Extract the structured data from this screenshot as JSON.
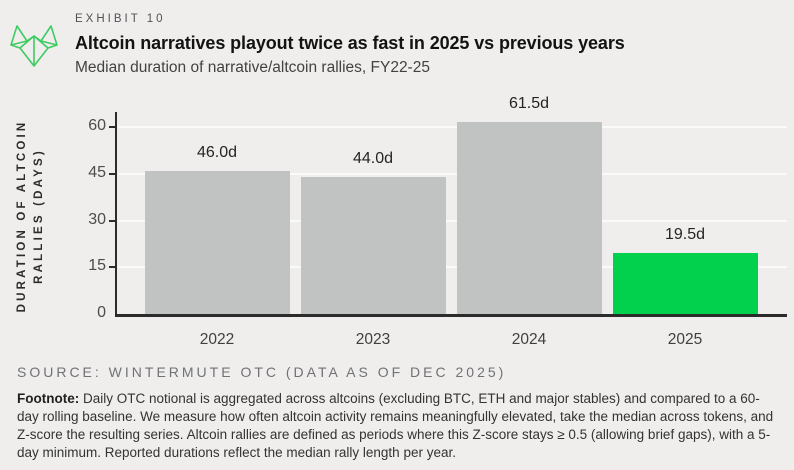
{
  "header": {
    "exhibit": "EXHIBIT 10",
    "title": "Altcoin narratives playout twice as fast in 2025 vs previous years",
    "subtitle": "Median duration of narrative/altcoin rallies, FY22-25",
    "logo": "wintermute-logo"
  },
  "chart_data": {
    "type": "bar",
    "title": "Altcoin narratives playout twice as fast in 2025 vs previous years",
    "subtitle": "Median duration of narrative/altcoin rallies, FY22-25",
    "categories": [
      "2022",
      "2023",
      "2024",
      "2025"
    ],
    "values": [
      46.0,
      44.0,
      61.5,
      19.5
    ],
    "value_labels": [
      "46.0d",
      "44.0d",
      "61.5d",
      "19.5d"
    ],
    "ylabel": "DURATION OF ALTCOIN RALLIES (DAYS)",
    "ylabel_lines": [
      "DURATION OF ALTCOIN",
      "RALLIES (DAYS)"
    ],
    "xlabel": "",
    "yticks": [
      0,
      15,
      30,
      45,
      60
    ],
    "ylim": [
      0,
      60
    ],
    "grid": "horizontal",
    "legend": "none",
    "bar_colors": [
      "#c0c3c1",
      "#c0c3c1",
      "#c0c3c1",
      "#02d14e"
    ],
    "highlight_index": 3
  },
  "colors": {
    "background": "#efeeec",
    "bar_gray": "#c0c3c1",
    "bar_green": "#02d14e",
    "gridline": "#fafaf8",
    "axis": "#2b2b2b",
    "logo_green": "#3ecb62"
  },
  "footer": {
    "source": "SOURCE: WINTERMUTE OTC (DATA AS OF DEC 2025)",
    "footnote_label": "Footnote:",
    "footnote_text": " Daily OTC notional is aggregated across altcoins (excluding BTC, ETH and major stables) and compared to a 60-day rolling baseline. We measure how often altcoin activity remains meaningfully elevated, take the median across tokens, and Z-score the resulting series. Altcoin rallies are defined as periods where this Z-score stays ≥ 0.5 (allowing brief gaps), with a 5-day minimum. Reported durations reflect the median rally length per year."
  }
}
